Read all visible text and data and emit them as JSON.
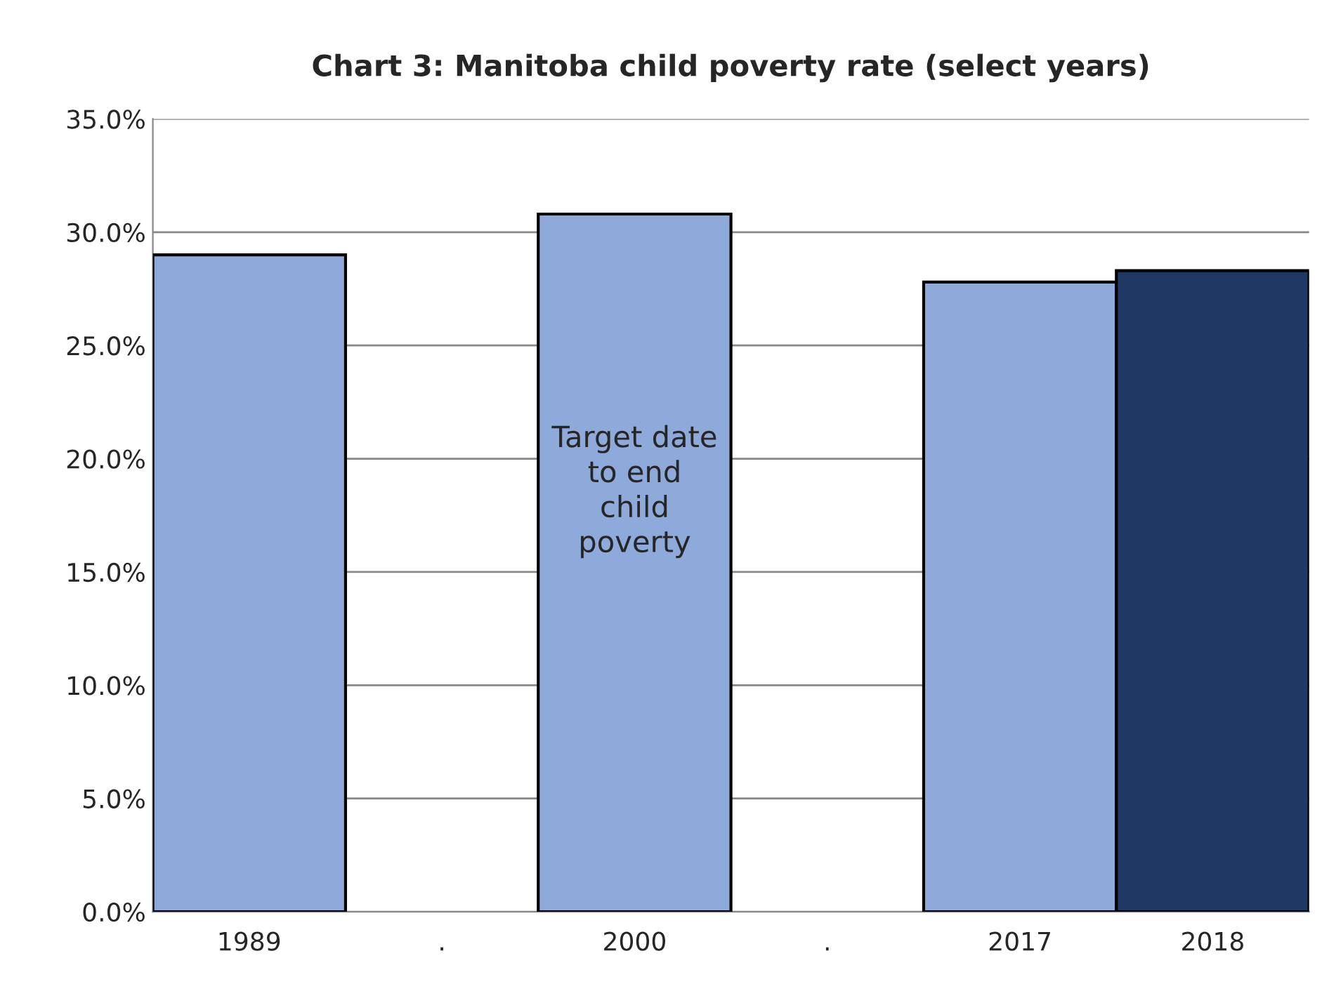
{
  "chart_data": {
    "type": "bar",
    "title": "Chart 3: Manitoba child poverty rate (select years)",
    "categories": [
      "1989",
      ".",
      "2000",
      ".",
      "2017",
      "2018"
    ],
    "values": [
      29.0,
      null,
      30.8,
      null,
      27.8,
      28.3
    ],
    "colors": [
      "#8eaadb",
      null,
      "#8eaadb",
      null,
      "#8eaadb",
      "#1f3864"
    ],
    "ylim": [
      0,
      35
    ],
    "yticks": [
      {
        "value": 0,
        "label": "0.0%"
      },
      {
        "value": 5,
        "label": "5.0%"
      },
      {
        "value": 10,
        "label": "10.0%"
      },
      {
        "value": 15,
        "label": "15.0%"
      },
      {
        "value": 20,
        "label": "20.0%"
      },
      {
        "value": 25,
        "label": "25.0%"
      },
      {
        "value": 30,
        "label": "30.0%"
      },
      {
        "value": 35,
        "label": "35.0%"
      }
    ],
    "grid": "y",
    "annotations": [
      "Target date\nto end\nchild\npoverty"
    ]
  }
}
